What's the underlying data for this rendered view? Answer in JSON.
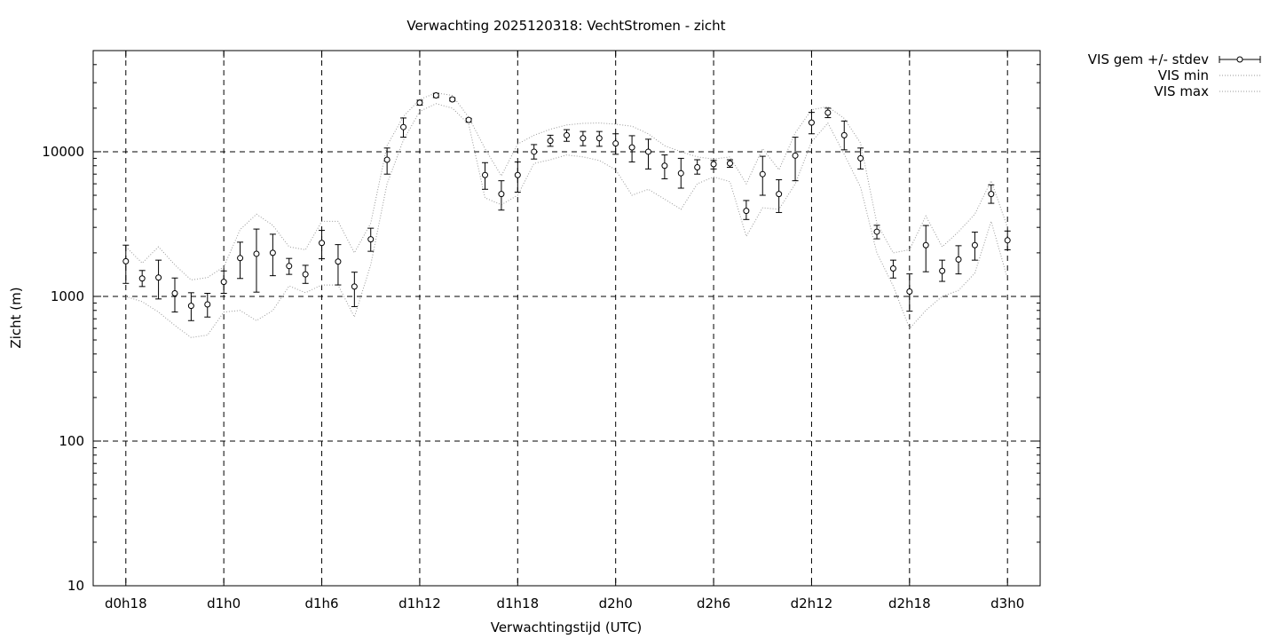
{
  "chart_data": {
    "type": "scatter",
    "title": "Verwachting 2025120318: VechtStromen - zicht",
    "xlabel": "Verwachtingstijd (UTC)",
    "ylabel": "Zicht (m)",
    "x_unit": "hours",
    "xlim": [
      16,
      74
    ],
    "ylim": [
      10,
      50000
    ],
    "y_scale": "log",
    "grid": true,
    "legend_position": "top-right",
    "x_ticks": [
      {
        "value": 18,
        "label": "d0h18"
      },
      {
        "value": 24,
        "label": "d1h0"
      },
      {
        "value": 30,
        "label": "d1h6"
      },
      {
        "value": 36,
        "label": "d1h12"
      },
      {
        "value": 42,
        "label": "d1h18"
      },
      {
        "value": 48,
        "label": "d2h0"
      },
      {
        "value": 54,
        "label": "d2h6"
      },
      {
        "value": 60,
        "label": "d2h12"
      },
      {
        "value": 66,
        "label": "d2h18"
      },
      {
        "value": 72,
        "label": "d3h0"
      }
    ],
    "y_ticks": [
      {
        "value": 10,
        "label": "10"
      },
      {
        "value": 100,
        "label": "100"
      },
      {
        "value": 1000,
        "label": "1000"
      },
      {
        "value": 10000,
        "label": "10000"
      }
    ],
    "series": [
      {
        "name": "VIS gem +/- stdev",
        "style": "points-errorbars",
        "color": "#000000",
        "x": [
          18,
          19,
          20,
          21,
          22,
          23,
          24,
          25,
          26,
          27,
          28,
          29,
          30,
          31,
          32,
          33,
          34,
          35,
          36,
          37,
          38,
          39,
          40,
          41,
          42,
          43,
          44,
          45,
          46,
          47,
          48,
          49,
          50,
          51,
          52,
          53,
          54,
          55,
          56,
          57,
          58,
          59,
          60,
          61,
          62,
          63,
          64,
          65,
          66,
          67,
          68,
          69,
          70,
          71,
          72
        ],
        "mean": [
          1750,
          1330,
          1350,
          1050,
          860,
          880,
          1260,
          1840,
          1970,
          2000,
          1620,
          1420,
          2340,
          1740,
          1170,
          2480,
          8800,
          14800,
          21800,
          24500,
          23000,
          16600,
          6900,
          5100,
          6900,
          10000,
          11900,
          13000,
          12400,
          12400,
          11400,
          10700,
          10000,
          8000,
          7100,
          7800,
          8200,
          8300,
          3900,
          7000,
          5100,
          9400,
          15900,
          18600,
          13000,
          9000,
          2800,
          1560,
          1080,
          2260,
          1500,
          1800,
          2260,
          5100,
          2440
        ],
        "low": [
          1230,
          1170,
          960,
          780,
          680,
          720,
          1050,
          1330,
          1070,
          1390,
          1420,
          1230,
          1820,
          1200,
          850,
          2050,
          7000,
          12600,
          21000,
          23700,
          22400,
          16000,
          5500,
          3950,
          5250,
          8900,
          10900,
          11800,
          11000,
          10900,
          9600,
          8500,
          7600,
          6500,
          5600,
          7000,
          7600,
          7800,
          3400,
          5000,
          3800,
          6300,
          13300,
          17200,
          10300,
          7600,
          2500,
          1340,
          790,
          1480,
          1270,
          1430,
          1780,
          4400,
          2100
        ],
        "high": [
          2260,
          1510,
          1780,
          1340,
          1060,
          1050,
          1500,
          2370,
          2920,
          2690,
          1830,
          1640,
          2860,
          2280,
          1470,
          2960,
          10600,
          17100,
          22700,
          25300,
          23600,
          17000,
          8400,
          6300,
          8500,
          11200,
          13000,
          14200,
          13800,
          13800,
          13300,
          12900,
          12200,
          9500,
          9000,
          8800,
          8700,
          8800,
          4600,
          9300,
          6400,
          12600,
          18700,
          20000,
          16300,
          10600,
          3100,
          1780,
          1430,
          3090,
          1780,
          2240,
          2780,
          5900,
          2830
        ]
      },
      {
        "name": "VIS min",
        "style": "dotted-line",
        "color": "#999999",
        "x": [
          18,
          19,
          20,
          21,
          22,
          23,
          24,
          25,
          26,
          27,
          28,
          29,
          30,
          31,
          32,
          33,
          34,
          35,
          36,
          37,
          38,
          39,
          40,
          41,
          42,
          43,
          44,
          45,
          46,
          47,
          48,
          49,
          50,
          51,
          52,
          53,
          54,
          55,
          56,
          57,
          58,
          59,
          60,
          61,
          62,
          63,
          64,
          65,
          66,
          67,
          68,
          69,
          70,
          71,
          72
        ],
        "values": [
          1000,
          920,
          780,
          630,
          520,
          540,
          780,
          800,
          680,
          800,
          1180,
          1060,
          1200,
          1200,
          720,
          1650,
          6000,
          12000,
          19000,
          21500,
          20000,
          15500,
          4800,
          4300,
          5000,
          8300,
          8800,
          9500,
          9200,
          8700,
          7500,
          5000,
          5500,
          4700,
          4000,
          6000,
          6700,
          6200,
          2600,
          4100,
          4000,
          6000,
          11700,
          15800,
          9600,
          5700,
          2000,
          1180,
          600,
          800,
          1000,
          1100,
          1450,
          3300,
          1330
        ]
      },
      {
        "name": "VIS max",
        "style": "dotted-line",
        "color": "#999999",
        "x": [
          18,
          19,
          20,
          21,
          22,
          23,
          24,
          25,
          26,
          27,
          28,
          29,
          30,
          31,
          32,
          33,
          34,
          35,
          36,
          37,
          38,
          39,
          40,
          41,
          42,
          43,
          44,
          45,
          46,
          47,
          48,
          49,
          50,
          51,
          52,
          53,
          54,
          55,
          56,
          57,
          58,
          59,
          60,
          61,
          62,
          63,
          64,
          65,
          66,
          67,
          68,
          69,
          70,
          71,
          72
        ],
        "values": [
          2200,
          1700,
          2200,
          1650,
          1300,
          1350,
          1600,
          2900,
          3700,
          3100,
          2200,
          2100,
          3300,
          3300,
          2000,
          3200,
          11000,
          17500,
          23000,
          25500,
          24500,
          17300,
          10500,
          6800,
          11300,
          13000,
          14300,
          15300,
          15700,
          15800,
          15500,
          15000,
          13300,
          11000,
          10000,
          9200,
          8900,
          9200,
          6000,
          10500,
          7500,
          13500,
          19500,
          20500,
          17000,
          11500,
          3200,
          2000,
          2100,
          3600,
          2200,
          2800,
          3700,
          6300,
          3000
        ]
      }
    ]
  }
}
